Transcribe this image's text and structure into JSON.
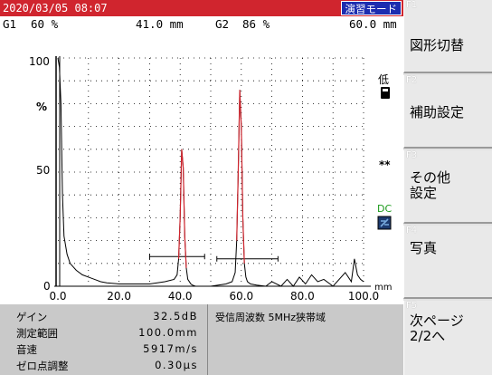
{
  "titlebar": {
    "datetime": "2020/03/05 08:07",
    "mode": "演習モード"
  },
  "gates": {
    "g1_label": "G1",
    "g1_amp": "60 %",
    "g1_dist": "41.0 mm",
    "g2_label": "G2",
    "g2_amp": "86 %",
    "g2_dist": "60.0 mm"
  },
  "scope": {
    "y_ticks": [
      "100",
      "%",
      "50",
      "0"
    ],
    "x_ticks": [
      "0.0",
      "20.0",
      "40.0",
      "60.0",
      "80.0",
      "100.0"
    ],
    "x_unit": "mm",
    "side": {
      "sensitivity": "低",
      "stars": "**",
      "dc": "DC"
    },
    "colors": {
      "echo": "#d0252e",
      "trace": "#000000",
      "grid": "#000000"
    }
  },
  "chart_data": {
    "type": "line",
    "xlabel": "mm",
    "xlim": [
      0,
      100
    ],
    "ylim": [
      0,
      100
    ],
    "grid": true,
    "series": [
      {
        "x": [
          0.0,
          0.5,
          1.0,
          1.5,
          2.0,
          3.0,
          4.0,
          6.0,
          8.0,
          10.0,
          12.0,
          14.0,
          16.0,
          20.0,
          25.0,
          30.0,
          35.0,
          38.0,
          39.0,
          39.5,
          40.0,
          40.5,
          41.0,
          41.5,
          42.0,
          42.5,
          43.0,
          43.5,
          44.0,
          45.0,
          50.0,
          55.0,
          57.0,
          58.0,
          58.5,
          59.0,
          59.5,
          60.0,
          60.5,
          61.0,
          61.5,
          62.0,
          63.0,
          65.0,
          68.0,
          70.0,
          73.0,
          75.0,
          77.0,
          79.0,
          81.0,
          83.0,
          85.0,
          87.0,
          90.0,
          94.0,
          96.0,
          97.0,
          98.0,
          99.0,
          100.0
        ],
        "values": [
          100,
          96,
          80,
          40,
          22,
          14,
          10,
          7,
          5,
          4,
          3,
          2,
          1.5,
          1,
          1,
          1,
          2,
          3,
          5,
          12,
          30,
          60,
          52,
          22,
          8,
          3,
          2,
          1,
          0.5,
          0,
          0,
          1,
          2,
          6,
          20,
          50,
          86,
          70,
          30,
          10,
          4,
          2,
          1,
          0.5,
          0,
          2,
          0,
          3,
          0,
          4,
          1,
          5,
          2,
          3,
          0,
          6,
          2,
          12,
          5,
          3,
          2
        ]
      }
    ],
    "gates": [
      {
        "name": "G1",
        "start": 30.0,
        "end": 48.0,
        "level": 13
      },
      {
        "name": "G2",
        "start": 52.0,
        "end": 72.0,
        "level": 12
      }
    ]
  },
  "info": {
    "gain_label": "ゲイン",
    "gain_value": "32.5dB",
    "range_label": "測定範囲",
    "range_value": "100.0mm",
    "velocity_label": "音速",
    "velocity_value": "5917m/s",
    "zero_label": "ゼロ点調整",
    "zero_value": "0.30μs",
    "freq": "受信周波数 5MHz狭帯域"
  },
  "keys": [
    {
      "fn": "F1",
      "label": "図形切替"
    },
    {
      "fn": "F2",
      "label": "補助設定"
    },
    {
      "fn": "F3",
      "label": "その他\n設定"
    },
    {
      "fn": "F4",
      "label": "写真"
    },
    {
      "fn": "F5",
      "label": "次ページ\n2/2へ"
    }
  ]
}
